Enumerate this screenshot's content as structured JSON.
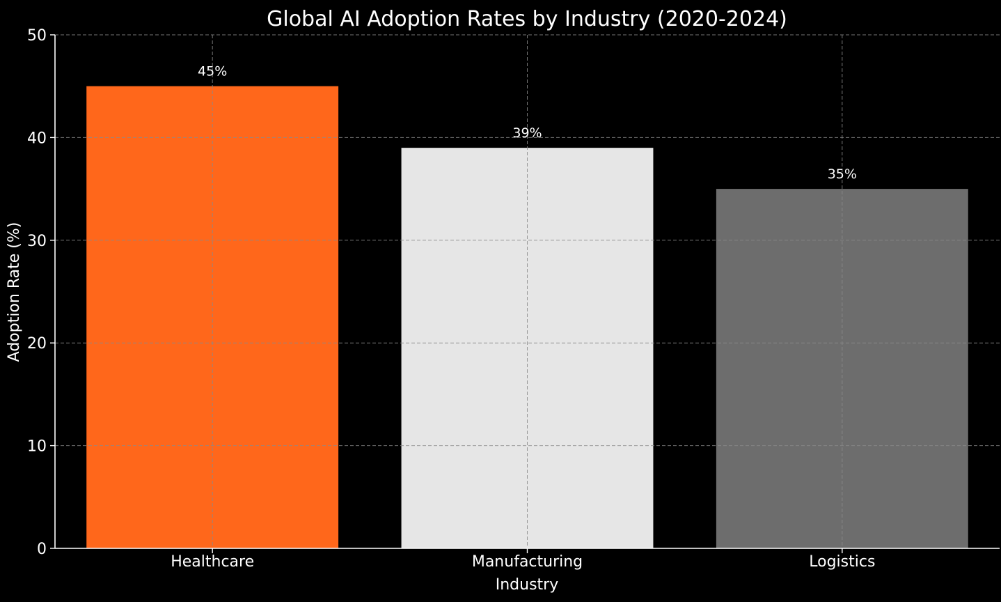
{
  "chart_data": {
    "type": "bar",
    "title": "Global AI Adoption Rates by Industry (2020-2024)",
    "xlabel": "Industry",
    "ylabel": "Adoption Rate (%)",
    "categories": [
      "Healthcare",
      "Manufacturing",
      "Logistics"
    ],
    "values": [
      45,
      39,
      35
    ],
    "value_labels": [
      "45%",
      "39%",
      "35%"
    ],
    "colors": [
      "#ff671b",
      "#e6e6e6",
      "#6d6d6d"
    ],
    "ylim": [
      0,
      50
    ],
    "yticks": [
      0,
      10,
      20,
      30,
      40,
      50
    ],
    "ytick_labels": [
      "0",
      "10",
      "20",
      "30",
      "40",
      "50"
    ],
    "grid": true,
    "background": "#000000"
  }
}
